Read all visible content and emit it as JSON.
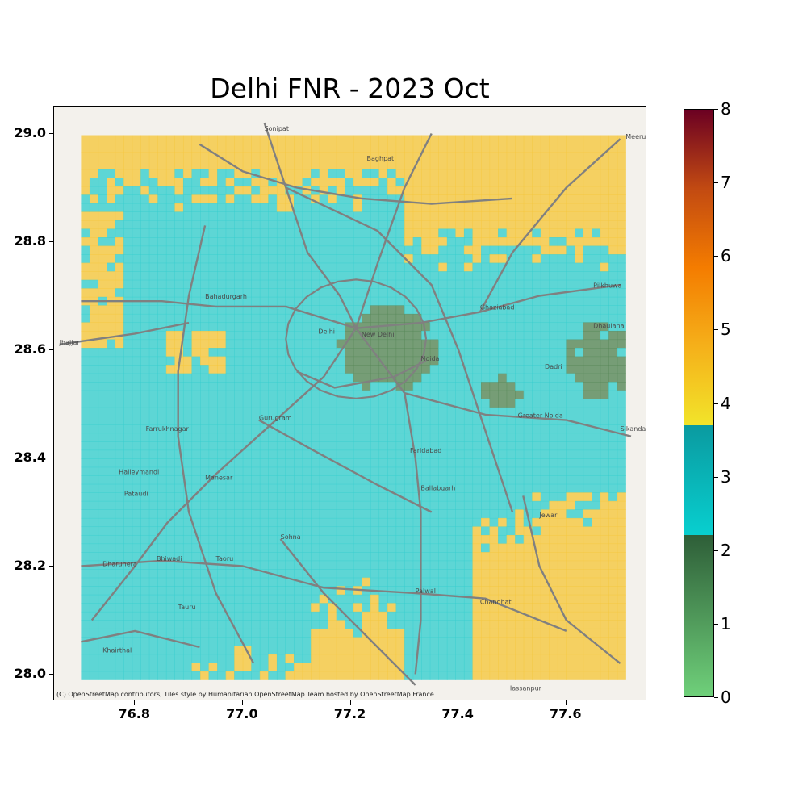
{
  "title": "Delhi FNR - 2023 Oct",
  "attribution": "(C) OpenStreetMap contributors, Tiles style by Humanitarian OpenStreetMap Team hosted by OpenStreetMap France",
  "axes": {
    "xlim": [
      76.65,
      77.75
    ],
    "ylim": [
      27.95,
      29.05
    ],
    "x_ticks": [
      "76.8",
      "77.0",
      "77.2",
      "77.4",
      "77.6"
    ],
    "x_tick_values": [
      76.8,
      77.0,
      77.2,
      77.4,
      77.6
    ],
    "y_ticks": [
      "29.0",
      "28.8",
      "28.6",
      "28.4",
      "28.2",
      "28.0"
    ],
    "y_tick_values": [
      29.0,
      28.8,
      28.6,
      28.4,
      28.2,
      28.0
    ]
  },
  "colorbar": {
    "range": [
      0,
      8
    ],
    "labels": [
      "0",
      "1",
      "2",
      "3",
      "4",
      "5",
      "6",
      "7",
      "8"
    ],
    "label_values": [
      0,
      1,
      2,
      3,
      4,
      5,
      6,
      7,
      8
    ],
    "segments": [
      {
        "from": 0,
        "to": 2.2,
        "colors": [
          "#6fd07a",
          "#2e5e38"
        ]
      },
      {
        "from": 2.2,
        "to": 3.7,
        "colors": [
          "#08cfcf",
          "#0a9aa0"
        ]
      },
      {
        "from": 3.7,
        "to": 8,
        "colors": [
          "#f2e42a",
          "#f5b01a",
          "#f47c00",
          "#c24a12",
          "#6b0022"
        ]
      }
    ]
  },
  "colors": {
    "map_background": "#f3f1ec",
    "fnr_low": "#5a8a5c",
    "fnr_mid": "#3ccfcf",
    "fnr_high": "#f5c842",
    "roads": "#808080"
  },
  "place_labels": [
    {
      "name": "Sonipat",
      "lon": 77.04,
      "lat": 29.005
    },
    {
      "name": "Meerut",
      "lon": 77.71,
      "lat": 28.99
    },
    {
      "name": "Baghpat",
      "lon": 77.23,
      "lat": 28.95
    },
    {
      "name": "Bahadurgarh",
      "lon": 76.93,
      "lat": 28.695
    },
    {
      "name": "Jhajjar",
      "lon": 76.66,
      "lat": 28.61
    },
    {
      "name": "Delhi",
      "lon": 77.14,
      "lat": 28.63
    },
    {
      "name": "New Delhi",
      "lon": 77.22,
      "lat": 28.625
    },
    {
      "name": "Noida",
      "lon": 77.33,
      "lat": 28.58
    },
    {
      "name": "Ghaziabad",
      "lon": 77.44,
      "lat": 28.675
    },
    {
      "name": "Dhaulana",
      "lon": 77.65,
      "lat": 28.64
    },
    {
      "name": "Dadri",
      "lon": 77.56,
      "lat": 28.565
    },
    {
      "name": "Greater Noida",
      "lon": 77.51,
      "lat": 28.475
    },
    {
      "name": "Pilkhuwa",
      "lon": 77.65,
      "lat": 28.715
    },
    {
      "name": "Sikandarabad",
      "lon": 77.7,
      "lat": 28.45
    },
    {
      "name": "Gurugram",
      "lon": 77.03,
      "lat": 28.47
    },
    {
      "name": "Farrukhnagar",
      "lon": 76.82,
      "lat": 28.45
    },
    {
      "name": "Faridabad",
      "lon": 77.31,
      "lat": 28.41
    },
    {
      "name": "Manesar",
      "lon": 76.93,
      "lat": 28.36
    },
    {
      "name": "Haileymandi",
      "lon": 76.77,
      "lat": 28.37
    },
    {
      "name": "Pataudi",
      "lon": 76.78,
      "lat": 28.33
    },
    {
      "name": "Ballabgarh",
      "lon": 77.33,
      "lat": 28.34
    },
    {
      "name": "Sohna",
      "lon": 77.07,
      "lat": 28.25
    },
    {
      "name": "Taoru",
      "lon": 76.95,
      "lat": 28.21
    },
    {
      "name": "Bhiwadi",
      "lon": 76.84,
      "lat": 28.21
    },
    {
      "name": "Dharuhera",
      "lon": 76.74,
      "lat": 28.2
    },
    {
      "name": "Palwal",
      "lon": 77.32,
      "lat": 28.15
    },
    {
      "name": "Chandhat",
      "lon": 77.44,
      "lat": 28.13
    },
    {
      "name": "Tauru",
      "lon": 76.88,
      "lat": 28.12
    },
    {
      "name": "Jewar",
      "lon": 77.55,
      "lat": 28.29
    },
    {
      "name": "Khairthal",
      "lon": 76.74,
      "lat": 28.04
    },
    {
      "name": "Hassanpur",
      "lon": 77.49,
      "lat": 27.97
    }
  ],
  "fnr_grid": {
    "extent_lon": [
      76.7,
      77.71
    ],
    "extent_lat": [
      27.99,
      28.997
    ],
    "nx": 64,
    "ny": 64
  }
}
